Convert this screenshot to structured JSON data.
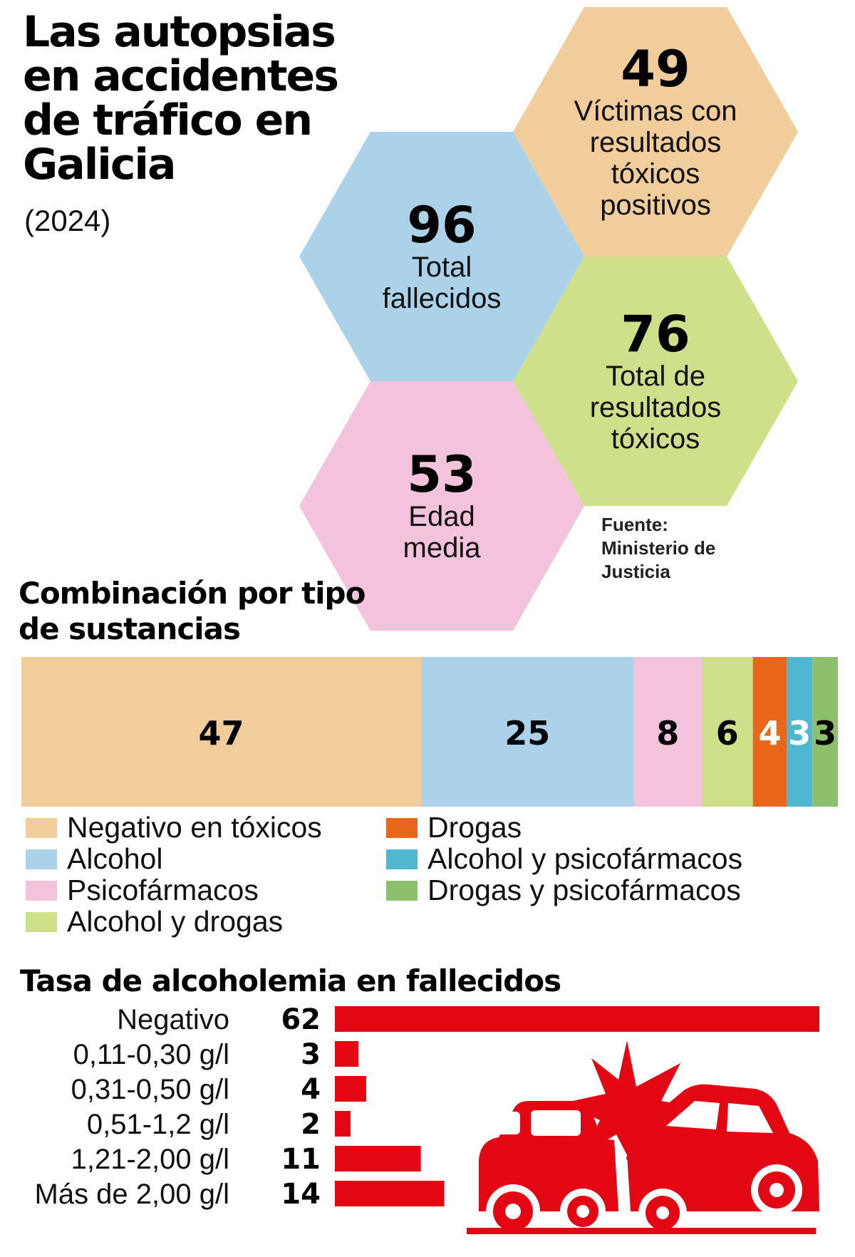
{
  "title": "Las autopsias en accidentes de tráfico en Galicia",
  "year": "(2024)",
  "source": "Fuente: Ministerio de Justicia",
  "stats": [
    {
      "value": "49",
      "label": "Víctimas con resultados tóxicos positivos",
      "color": "#f2cd9c"
    },
    {
      "value": "96",
      "label": "Total fallecidos",
      "color": "#acd2ea"
    },
    {
      "value": "76",
      "label": "Total de resultados tóxicos",
      "color": "#cfe08a"
    },
    {
      "value": "53",
      "label": "Edad media",
      "color": "#f3c3dc"
    }
  ],
  "combination_title": "Combinación por tipo de sustancias",
  "alcohol_title": "Tasa de alcoholemia en fallecidos",
  "chart_data": [
    {
      "type": "bar",
      "orientation": "horizontal-stacked",
      "title": "Combinación por tipo de sustancias",
      "series": [
        {
          "name": "Negativo en tóxicos",
          "value": 47,
          "color": "#f2cd9c",
          "label_color": "#000000"
        },
        {
          "name": "Alcohol",
          "value": 25,
          "color": "#acd2ea",
          "label_color": "#000000"
        },
        {
          "name": "Psicofármacos",
          "value": 8,
          "color": "#f3c3dc",
          "label_color": "#000000"
        },
        {
          "name": "Alcohol y drogas",
          "value": 6,
          "color": "#cfe08a",
          "label_color": "#000000"
        },
        {
          "name": "Drogas",
          "value": 4,
          "color": "#e8671b",
          "label_color": "#ffffff"
        },
        {
          "name": "Alcohol y psicofármacos",
          "value": 3,
          "color": "#4fb7cf",
          "label_color": "#ffffff"
        },
        {
          "name": "Drogas y psicofármacos",
          "value": 3,
          "color": "#8cc06c",
          "label_color": "#000000"
        }
      ],
      "legend": "bottom"
    },
    {
      "type": "bar",
      "orientation": "horizontal",
      "title": "Tasa de alcoholemia en fallecidos",
      "categories": [
        "Negativo",
        "0,11-0,30 g/l",
        "0,31-0,50 g/l",
        "0,51-1,2 g/l",
        "1,21-2,00 g/l",
        "Más de 2,00 g/l"
      ],
      "values": [
        62,
        3,
        4,
        2,
        11,
        14
      ],
      "color": "#e30613"
    }
  ],
  "icons": {
    "crash": "car-crash-icon"
  }
}
